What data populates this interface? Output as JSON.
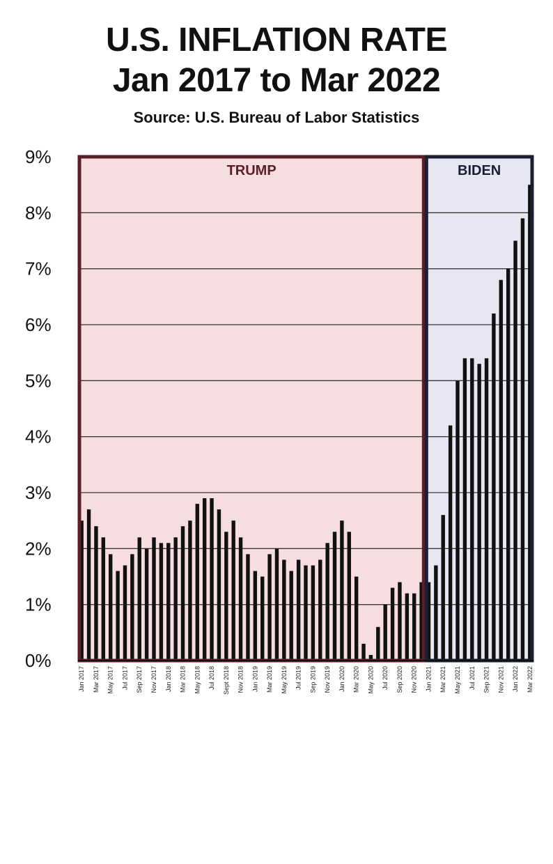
{
  "chart_data": {
    "type": "bar",
    "title": "U.S. INFLATION RATE",
    "subtitle": "Jan 2017 to Mar 2022",
    "source": "Source: U.S. Bureau of Labor Statistics",
    "xlabel": "",
    "ylabel": "",
    "ylim": [
      0,
      9
    ],
    "y_ticks": [
      "0%",
      "1%",
      "2%",
      "3%",
      "4%",
      "5%",
      "6%",
      "7%",
      "8%",
      "9%"
    ],
    "grid": true,
    "regions": [
      {
        "label": "TRUMP",
        "start_index": 0,
        "end_index": 47,
        "fill": "#f6dde0",
        "border": "#5c1e27"
      },
      {
        "label": "BIDEN",
        "start_index": 48,
        "end_index": 62,
        "fill": "#e6e7f3",
        "border": "#1c1f33"
      }
    ],
    "bar_color": "#111111",
    "x_tick_labels": [
      "Jan 2017",
      "Mar 2017",
      "May 2017",
      "Jul 2017",
      "Sep 2017",
      "Nov 2017",
      "Jan 2018",
      "Mar 2018",
      "May 2018",
      "Jul 2018",
      "Sept 2018",
      "Nov 2018",
      "Jan 2019",
      "Mar 2019",
      "May 2019",
      "Jul 2019",
      "Sep 2019",
      "Nov 2019",
      "Jan 2020",
      "Mar 2020",
      "May 2020",
      "Jul 2020",
      "Sep 2020",
      "Nov 2020",
      "Jan 2021",
      "Mar 2021",
      "May 2021",
      "Jul 2021",
      "Sep 2021",
      "Nov 2021",
      "Jan 2022",
      "Mar 2022"
    ],
    "categories": [
      "Jan 2017",
      "Feb 2017",
      "Mar 2017",
      "Apr 2017",
      "May 2017",
      "Jun 2017",
      "Jul 2017",
      "Aug 2017",
      "Sep 2017",
      "Oct 2017",
      "Nov 2017",
      "Dec 2017",
      "Jan 2018",
      "Feb 2018",
      "Mar 2018",
      "Apr 2018",
      "May 2018",
      "Jun 2018",
      "Jul 2018",
      "Aug 2018",
      "Sep 2018",
      "Oct 2018",
      "Nov 2018",
      "Dec 2018",
      "Jan 2019",
      "Feb 2019",
      "Mar 2019",
      "Apr 2019",
      "May 2019",
      "Jun 2019",
      "Jul 2019",
      "Aug 2019",
      "Sep 2019",
      "Oct 2019",
      "Nov 2019",
      "Dec 2019",
      "Jan 2020",
      "Feb 2020",
      "Mar 2020",
      "Apr 2020",
      "May 2020",
      "Jun 2020",
      "Jul 2020",
      "Aug 2020",
      "Sep 2020",
      "Oct 2020",
      "Nov 2020",
      "Dec 2020",
      "Jan 2021",
      "Feb 2021",
      "Mar 2021",
      "Apr 2021",
      "May 2021",
      "Jun 2021",
      "Jul 2021",
      "Aug 2021",
      "Sep 2021",
      "Oct 2021",
      "Nov 2021",
      "Dec 2021",
      "Jan 2022",
      "Feb 2022",
      "Mar 2022"
    ],
    "values": [
      2.5,
      2.7,
      2.4,
      2.2,
      1.9,
      1.6,
      1.7,
      1.9,
      2.2,
      2.0,
      2.2,
      2.1,
      2.1,
      2.2,
      2.4,
      2.5,
      2.8,
      2.9,
      2.9,
      2.7,
      2.3,
      2.5,
      2.2,
      1.9,
      1.6,
      1.5,
      1.9,
      2.0,
      1.8,
      1.6,
      1.8,
      1.7,
      1.7,
      1.8,
      2.1,
      2.3,
      2.5,
      2.3,
      1.5,
      0.3,
      0.1,
      0.6,
      1.0,
      1.3,
      1.4,
      1.2,
      1.2,
      1.4,
      1.4,
      1.7,
      2.6,
      4.2,
      5.0,
      5.4,
      5.4,
      5.3,
      5.4,
      6.2,
      6.8,
      7.0,
      7.5,
      7.9,
      8.5
    ],
    "series_name": "Inflation rate (%)"
  }
}
